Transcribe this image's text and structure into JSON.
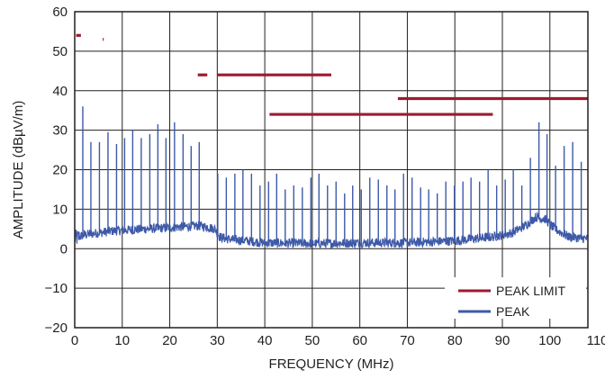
{
  "chart_data": {
    "type": "line",
    "title": "",
    "xlabel": "FREQUENCY (MHz)",
    "ylabel": "AMPLITUDE (dBµV/m)",
    "xlim": [
      0,
      108
    ],
    "ylim": [
      -20,
      60
    ],
    "x_ticks": [
      0,
      10,
      20,
      30,
      40,
      50,
      60,
      70,
      80,
      90,
      100,
      110
    ],
    "y_ticks": [
      -20,
      -10,
      0,
      10,
      20,
      30,
      40,
      50,
      60
    ],
    "x_tick_labels": [
      "0",
      "10",
      "20",
      "30",
      "40",
      "50",
      "60",
      "70",
      "80",
      "90",
      "100",
      "110"
    ],
    "y_tick_labels": [
      "−20",
      "−10",
      "0",
      "10",
      "20",
      "30",
      "40",
      "50",
      "60"
    ],
    "grid": true,
    "legend": {
      "position": "bottom-right",
      "entries": [
        "PEAK LIMIT",
        "PEAK"
      ]
    },
    "series": [
      {
        "name": "PEAK LIMIT",
        "color": "#9b1b30",
        "segments": [
          {
            "x": [
              0.3,
              1.3
            ],
            "y": [
              54,
              54
            ]
          },
          {
            "x": [
              5.9,
              6.1
            ],
            "y": [
              53,
              53
            ]
          },
          {
            "x": [
              25.9,
              27.9
            ],
            "y": [
              44,
              44
            ]
          },
          {
            "x": [
              30,
              54
            ],
            "y": [
              44,
              44
            ]
          },
          {
            "x": [
              41,
              88
            ],
            "y": [
              34,
              34
            ]
          },
          {
            "x": [
              68,
              108
            ],
            "y": [
              38,
              38
            ]
          }
        ]
      },
      {
        "name": "PEAK",
        "color": "#3d59a8",
        "noise_floor": [
          [
            0,
            2.5
          ],
          [
            2,
            3.5
          ],
          [
            8,
            4.5
          ],
          [
            15,
            5
          ],
          [
            22,
            5.5
          ],
          [
            26,
            5.8
          ],
          [
            28,
            5.5
          ],
          [
            29.5,
            5
          ],
          [
            30.5,
            3
          ],
          [
            32,
            2.5
          ],
          [
            40,
            1.5
          ],
          [
            50,
            1.3
          ],
          [
            60,
            1.5
          ],
          [
            70,
            1.5
          ],
          [
            80,
            2
          ],
          [
            88,
            3
          ],
          [
            92,
            4
          ],
          [
            95,
            6
          ],
          [
            97,
            8
          ],
          [
            99,
            7.5
          ],
          [
            101,
            5
          ],
          [
            104,
            3
          ],
          [
            108,
            2.5
          ]
        ],
        "peaks": [
          [
            1.7,
            36
          ],
          [
            3.4,
            27
          ],
          [
            5.2,
            27
          ],
          [
            7.0,
            29.5
          ],
          [
            8.8,
            26.5
          ],
          [
            10.5,
            28
          ],
          [
            12.2,
            30
          ],
          [
            14.0,
            28
          ],
          [
            15.8,
            29
          ],
          [
            17.5,
            31.5
          ],
          [
            19.2,
            28
          ],
          [
            21.0,
            32
          ],
          [
            22.8,
            29
          ],
          [
            24.5,
            26
          ],
          [
            26.2,
            27
          ],
          [
            30.1,
            19
          ],
          [
            31.9,
            18
          ],
          [
            33.7,
            19
          ],
          [
            35.4,
            20
          ],
          [
            37.2,
            19
          ],
          [
            39.0,
            16
          ],
          [
            40.8,
            17
          ],
          [
            42.5,
            19
          ],
          [
            44.3,
            15
          ],
          [
            46.1,
            16
          ],
          [
            47.9,
            15.5
          ],
          [
            49.7,
            18
          ],
          [
            51.4,
            19
          ],
          [
            53.2,
            16
          ],
          [
            55.0,
            17
          ],
          [
            56.8,
            14
          ],
          [
            58.5,
            16
          ],
          [
            60.3,
            15
          ],
          [
            62.1,
            18
          ],
          [
            63.9,
            17.5
          ],
          [
            65.7,
            16
          ],
          [
            67.4,
            15
          ],
          [
            69.2,
            19
          ],
          [
            71.0,
            18
          ],
          [
            72.8,
            15.5
          ],
          [
            74.5,
            15
          ],
          [
            76.3,
            14
          ],
          [
            78.1,
            17
          ],
          [
            79.9,
            16
          ],
          [
            81.7,
            17
          ],
          [
            83.4,
            18
          ],
          [
            85.2,
            17
          ],
          [
            87.0,
            20
          ],
          [
            88.8,
            16
          ],
          [
            90.6,
            17.5
          ],
          [
            92.3,
            20
          ],
          [
            94.1,
            16
          ],
          [
            95.9,
            23
          ],
          [
            97.7,
            32
          ],
          [
            99.4,
            29
          ],
          [
            101.2,
            21
          ],
          [
            103.0,
            26
          ],
          [
            104.8,
            27
          ],
          [
            106.6,
            22
          ]
        ]
      }
    ]
  }
}
